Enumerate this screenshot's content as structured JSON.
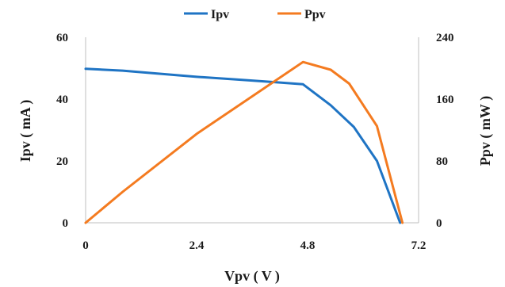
{
  "chart_data": {
    "type": "line",
    "xlabel": "Vpv ( V )",
    "ylabel_left": "Ipv ( mA )",
    "ylabel_right": "Ppv ( mW )",
    "xlim": [
      0,
      7.2
    ],
    "ylim_left": [
      0,
      60
    ],
    "ylim_right": [
      0,
      240
    ],
    "x_ticks": [
      "0",
      "2.4",
      "4.8",
      "7.2"
    ],
    "y_left_ticks": [
      "0",
      "20",
      "40",
      "60"
    ],
    "y_right_ticks": [
      "0",
      "80",
      "160",
      "240"
    ],
    "grid": false,
    "legend_position": "top-center",
    "series": [
      {
        "name": "Ipv",
        "axis": "left",
        "color": "#1f74c4",
        "x": [
          0,
          0.8,
          1.6,
          2.4,
          3.2,
          4.0,
          4.7,
          5.3,
          5.8,
          6.3,
          6.8
        ],
        "y": [
          49.8,
          49.2,
          48.2,
          47.2,
          46.4,
          45.6,
          44.8,
          38.0,
          31.0,
          20.0,
          0
        ]
      },
      {
        "name": "Ppv",
        "axis": "right",
        "color": "#f47b20",
        "x": [
          0,
          0.8,
          2.4,
          4.7,
          5.3,
          5.7,
          6.3,
          6.85
        ],
        "y": [
          0,
          40,
          115,
          208,
          198,
          180,
          125,
          0
        ]
      }
    ]
  }
}
